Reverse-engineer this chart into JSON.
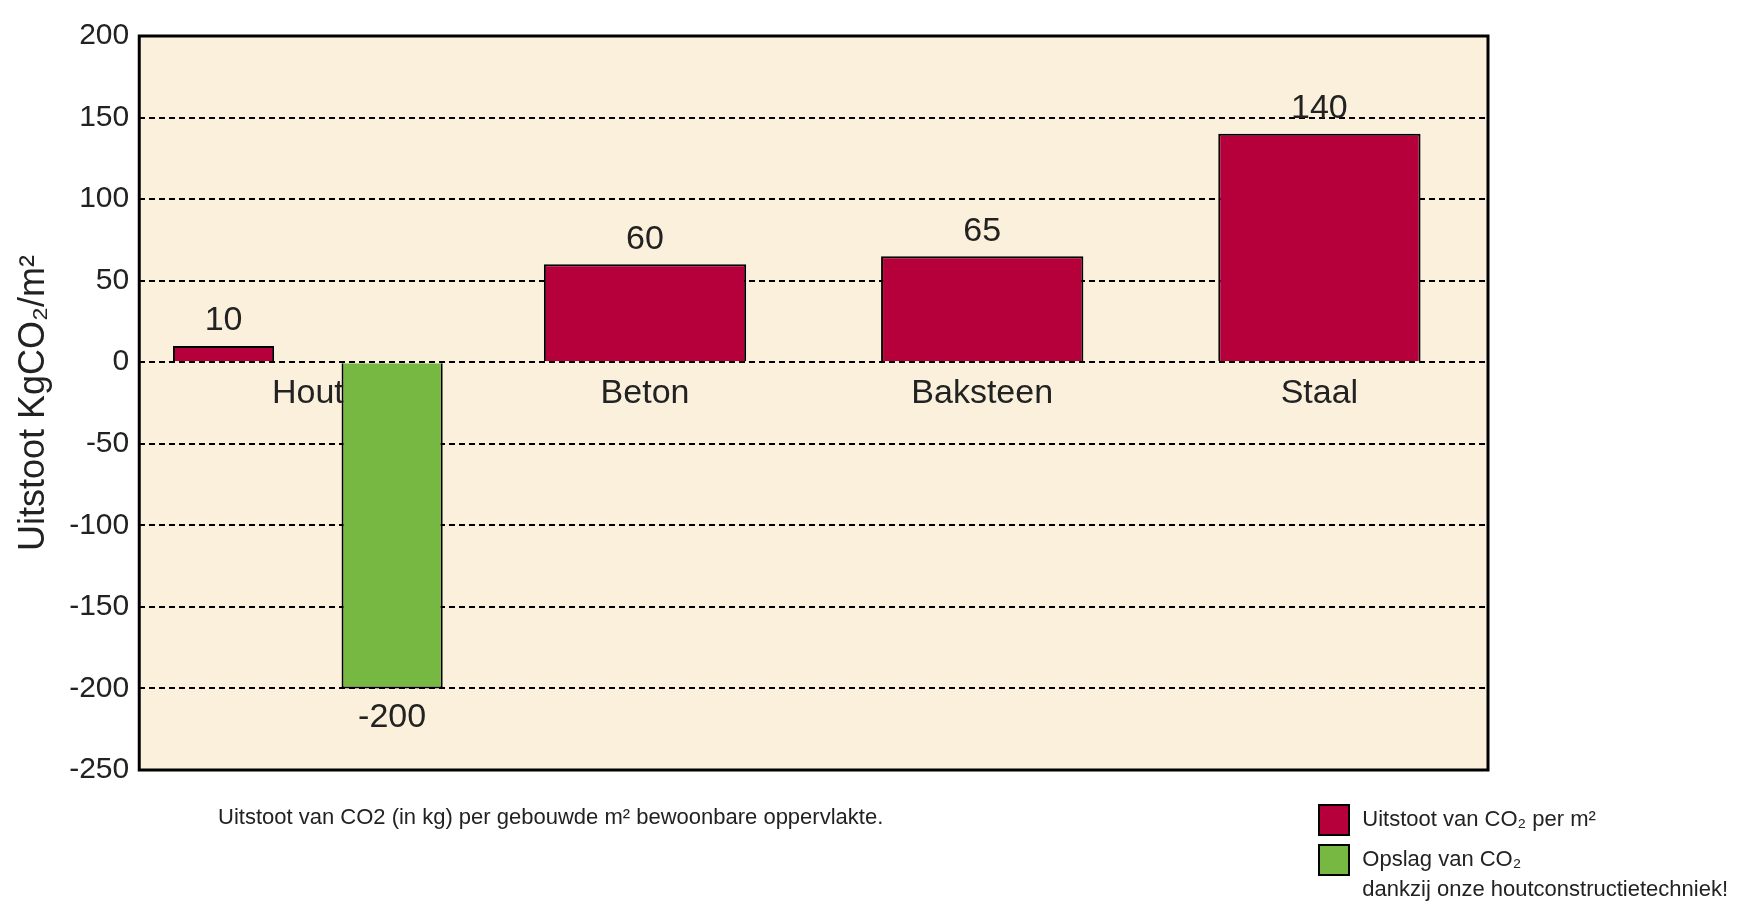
{
  "chart_data": {
    "type": "bar",
    "ylabel": "Uitstoot KgCO₂/m²",
    "categories": [
      "Hout",
      "Beton",
      "Baksteen",
      "Staal"
    ],
    "series": [
      {
        "name": "Uitstoot van CO₂ per m²",
        "color": "#b5003c",
        "values": [
          10,
          60,
          65,
          140
        ]
      },
      {
        "name": "Opslag van CO₂\ndankzij onze houtconstructietechniek!",
        "color": "#77b843",
        "values": [
          -200,
          null,
          null,
          null
        ]
      }
    ],
    "ylim": [
      -250,
      200
    ],
    "yticks": [
      -250,
      -200,
      -150,
      -100,
      -50,
      0,
      50,
      100,
      150,
      200
    ],
    "grid": "y",
    "data_labels": true,
    "legend": "bottom right",
    "annotations": [
      "Uitstoot van CO2 (in kg) per gebouwde m² bewoonbare oppervlakte."
    ]
  }
}
